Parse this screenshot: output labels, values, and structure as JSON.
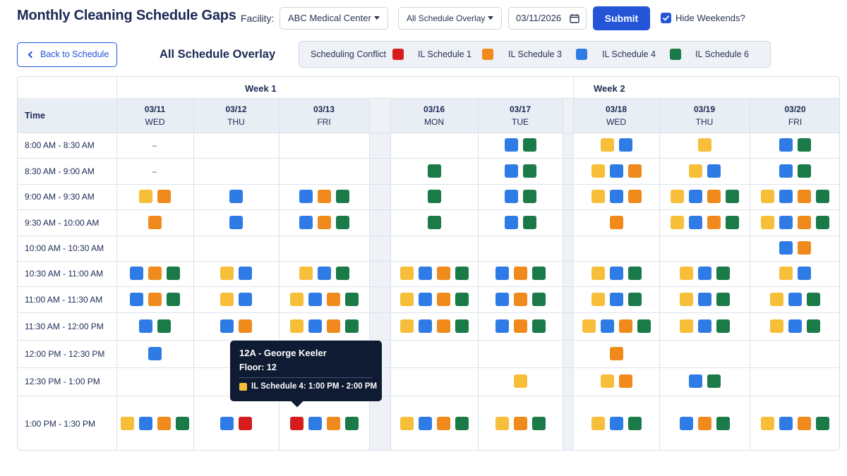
{
  "header": {
    "title": "Monthly Cleaning Schedule Gaps",
    "facility_label": "Facility:",
    "facility_value": "ABC Medical Center",
    "overlay_value": "All Schedule Overlay",
    "date_value": "03/11/2026",
    "submit_label": "Submit",
    "hide_weekends_label": "Hide Weekends?",
    "hide_weekends_checked": true
  },
  "toolbar": {
    "back_label": "Back to Schedule",
    "overlay_title": "All Schedule Overlay"
  },
  "legend": [
    {
      "label": "Scheduling Conflict",
      "color": "#d61c1c"
    },
    {
      "label": "IL Schedule 1",
      "color": "#f08a1c"
    },
    {
      "label": "IL Schedule 3",
      "color": "#2f7be6"
    },
    {
      "label": "IL Schedule 4",
      "color": "#1a7a48"
    },
    {
      "label": "IL Schedule 6",
      "color": ""
    }
  ],
  "colors": {
    "R": "#d61c1c",
    "O": "#f08a1c",
    "B": "#2f7be6",
    "G": "#1a7a48",
    "Y": "#f7be3a",
    "accent": "#2455d9"
  },
  "grid": {
    "time_header": "Time",
    "weeks": [
      "Week 1",
      "Week 2"
    ],
    "days": [
      {
        "date": "03/11",
        "name": "WED"
      },
      {
        "date": "03/12",
        "name": "THU"
      },
      {
        "date": "03/13",
        "name": "FRI"
      },
      {
        "date": "03/16",
        "name": "MON"
      },
      {
        "date": "03/17",
        "name": "TUE"
      },
      {
        "date": "03/18",
        "name": "WED"
      },
      {
        "date": "03/19",
        "name": "THU"
      },
      {
        "date": "03/20",
        "name": "FRI"
      }
    ],
    "times": [
      "8:00 AM - 8:30 AM",
      "8:30 AM - 9:00 AM",
      "9:00 AM - 9:30 AM",
      "9:30 AM - 10:00 AM",
      "10:00 AM - 10:30 AM",
      "10:30 AM - 11:00 AM",
      "11:00 AM - 11:30 AM",
      "11:30 AM - 12:00 PM",
      "12:00 PM - 12:30 PM",
      "12:30 PM - 1:00 PM",
      "1:00 PM - 1:30 PM"
    ],
    "empty_marker": "–",
    "cells": [
      [
        "-",
        "",
        "",
        "",
        "BG",
        "YB",
        "Y",
        "BG"
      ],
      [
        "-",
        "",
        "",
        "G",
        "BG",
        "YBO",
        "YB",
        "BG"
      ],
      [
        "YO",
        "B",
        "BOG",
        "G",
        "BG",
        "YBO",
        "YBOG",
        "YBOG"
      ],
      [
        "O",
        "B",
        "BOG",
        "G",
        "BG",
        "O",
        "YBOG",
        "YBOG"
      ],
      [
        "",
        "",
        "",
        "",
        "",
        "",
        "",
        "BO"
      ],
      [
        "BOG",
        "YB",
        "YBG",
        "YBOG",
        "BOG",
        "YBG",
        "YBG",
        "YB"
      ],
      [
        "BOG",
        "YB",
        "YBOG",
        "YBOG",
        "BOG",
        "YBG",
        "YBG",
        "YBG"
      ],
      [
        "BG",
        "BO",
        "YBOG",
        "YBOG",
        "BOG",
        "YBOG",
        "YBG",
        "YBG"
      ],
      [
        "B",
        "",
        "",
        "",
        "",
        "O",
        "",
        ""
      ],
      [
        "",
        "",
        "",
        "",
        "Y",
        "YO",
        "BG",
        ""
      ],
      [
        "YBOG",
        "BR",
        "RBOG",
        "YBOG",
        "YOG",
        "YBG",
        "BOG",
        "YBOG"
      ]
    ]
  },
  "tooltip": {
    "title": "12A - George Keeler",
    "floor": "Floor: 12",
    "schedule": "IL Schedule 4: 1:00 PM - 2:00 PM",
    "swatch_color": "#f7be3a"
  }
}
